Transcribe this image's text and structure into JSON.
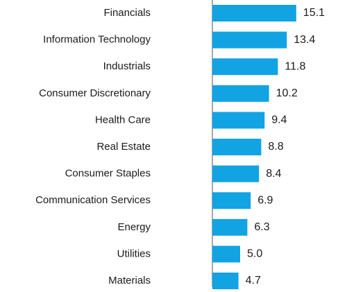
{
  "chart_data": {
    "type": "bar",
    "orientation": "horizontal",
    "categories": [
      "Financials",
      "Information Technology",
      "Industrials",
      "Consumer Discretionary",
      "Health Care",
      "Real Estate",
      "Consumer Staples",
      "Communication Services",
      "Energy",
      "Utilities",
      "Materials"
    ],
    "values": [
      15.1,
      13.4,
      11.8,
      10.2,
      9.4,
      8.8,
      8.4,
      6.9,
      6.3,
      5.0,
      4.7
    ],
    "value_labels": [
      "15.1",
      "13.4",
      "11.8",
      "10.2",
      "9.4",
      "8.8",
      "8.4",
      "6.9",
      "6.3",
      "5.0",
      "4.7"
    ],
    "color": "#12a3e3"
  }
}
